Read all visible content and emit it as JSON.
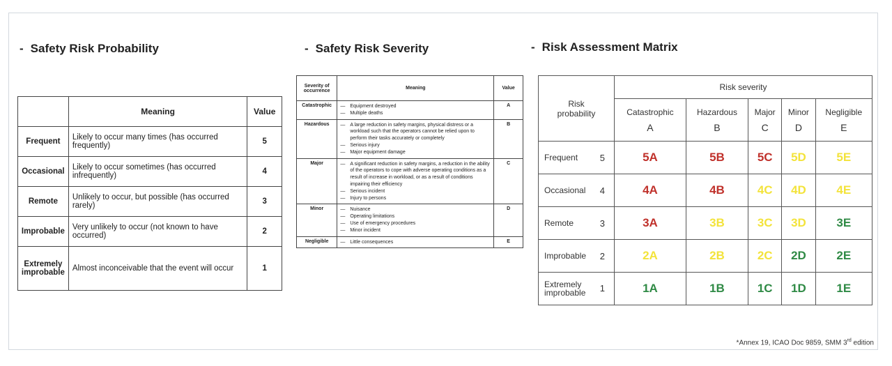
{
  "sections": {
    "probability_title": "Safety Risk Probability",
    "severity_title": "Safety Risk Severity",
    "matrix_title": "Risk Assessment Matrix",
    "dash": "-"
  },
  "probability": {
    "headers": [
      "",
      "Meaning",
      "Value"
    ],
    "rows": [
      {
        "label": "Frequent",
        "meaning": "Likely to occur many times (has occurred frequently)",
        "value": "5"
      },
      {
        "label": "Occasional",
        "meaning": "Likely to occur sometimes (has occurred infrequently)",
        "value": "4"
      },
      {
        "label": "Remote",
        "meaning": "Unlikely to occur, but possible (has occurred rarely)",
        "value": "3"
      },
      {
        "label": "Improbable",
        "meaning": "Very unlikely to occur (not known to have occurred)",
        "value": "2"
      },
      {
        "label_line1": "Extremely",
        "label_line2": "improbable",
        "meaning": "Almost inconceivable that the event will occur",
        "value": "1"
      }
    ]
  },
  "severity": {
    "headers": {
      "col1_line1": "Severity of",
      "col1_line2": "occurrence",
      "col2": "Meaning",
      "col3": "Value"
    },
    "rows": [
      {
        "label": "Catastrophic",
        "items": [
          "Equipment destroyed",
          "Multiple deaths"
        ],
        "value": "A"
      },
      {
        "label": "Hazardous",
        "items": [
          "A large reduction in safety margins, physical distress or a workload such that the operators cannot be relied upon to perform their tasks accurately or completely",
          "Serious injury",
          "Major equipment damage"
        ],
        "value": "B"
      },
      {
        "label": "Major",
        "items": [
          "A significant reduction in safety margins, a reduction in the ability of the operators to cope with adverse operating conditions as a result of increase in workload, or as a result of conditions impairing their efficiency",
          "Serious incident",
          "Injury to persons"
        ],
        "value": "C"
      },
      {
        "label": "Minor",
        "items": [
          "Nuisance",
          "Operating limitations",
          "Use of emergency procedures",
          "Minor incident"
        ],
        "value": "D"
      },
      {
        "label": "Negligible",
        "items": [
          "Little consequences"
        ],
        "value": "E"
      }
    ]
  },
  "matrix": {
    "risk_probability_line1": "Risk",
    "risk_probability_line2": "probability",
    "risk_severity": "Risk severity",
    "columns": [
      {
        "name": "Catastrophic",
        "letter": "A"
      },
      {
        "name": "Hazardous",
        "letter": "B"
      },
      {
        "name": "Major",
        "letter": "C"
      },
      {
        "name": "Minor",
        "letter": "D"
      },
      {
        "name": "Negligible",
        "letter": "E"
      }
    ],
    "rows": [
      {
        "label": "Frequent",
        "num": "5",
        "cells": [
          "5A",
          "5B",
          "5C",
          "5D",
          "5E"
        ]
      },
      {
        "label": "Occasional",
        "num": "4",
        "cells": [
          "4A",
          "4B",
          "4C",
          "4D",
          "4E"
        ]
      },
      {
        "label": "Remote",
        "num": "3",
        "cells": [
          "3A",
          "3B",
          "3C",
          "3D",
          "3E"
        ]
      },
      {
        "label": "Improbable",
        "num": "2",
        "cells": [
          "2A",
          "2B",
          "2C",
          "2D",
          "2E"
        ]
      },
      {
        "label_line1": "Extremely",
        "label_line2": "improbable",
        "num": "1",
        "cells": [
          "1A",
          "1B",
          "1C",
          "1D",
          "1E"
        ]
      }
    ],
    "cell_colors": [
      [
        "#c0312b",
        "#c0312b",
        "#c0312b",
        "#f3e33b",
        "#f3e33b"
      ],
      [
        "#c0312b",
        "#c0312b",
        "#f3e33b",
        "#f3e33b",
        "#f3e33b"
      ],
      [
        "#c0312b",
        "#f3e33b",
        "#f3e33b",
        "#f3e33b",
        "#2f8a45"
      ],
      [
        "#f3e33b",
        "#f3e33b",
        "#f3e33b",
        "#2f8a45",
        "#2f8a45"
      ],
      [
        "#2f8a45",
        "#2f8a45",
        "#2f8a45",
        "#2f8a45",
        "#2f8a45"
      ]
    ]
  },
  "footnote": {
    "prefix": "*Annex 19, ICAO Doc 9859, SMM 3",
    "sup": "rd",
    "suffix": " edition"
  }
}
